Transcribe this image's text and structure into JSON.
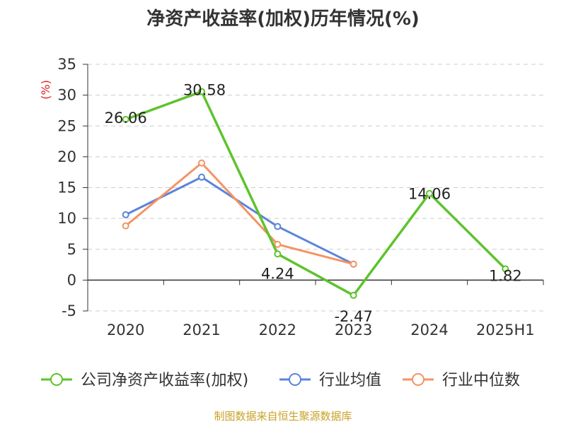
{
  "title": "净资产收益率(加权)历年情况(%)",
  "source_text": "制图数据来自恒生聚源数据库",
  "chart_data": {
    "type": "line",
    "title": "净资产收益率(加权)历年情况(%)",
    "ylabel": "(%)",
    "categories": [
      "2020",
      "2021",
      "2022",
      "2023",
      "2024",
      "2025H1"
    ],
    "ylim": [
      -5,
      35
    ],
    "yticks": [
      -5,
      0,
      5,
      10,
      15,
      20,
      25,
      30,
      35
    ],
    "grid": true,
    "legend_position": "bottom",
    "series": [
      {
        "name": "公司净资产收益率(加权)",
        "color": "#5ec32c",
        "values": [
          26.06,
          30.58,
          4.24,
          -2.47,
          14.06,
          1.82
        ],
        "labels": [
          "26.06",
          "30.58",
          "4.24",
          "-2.47",
          "14.06",
          "1.82"
        ]
      },
      {
        "name": "行业均值",
        "color": "#5b84d9",
        "values": [
          10.6,
          16.7,
          8.7,
          2.6,
          null,
          null
        ]
      },
      {
        "name": "行业中位数",
        "color": "#f59363",
        "values": [
          8.8,
          19.0,
          5.8,
          2.6,
          null,
          null
        ]
      }
    ]
  }
}
